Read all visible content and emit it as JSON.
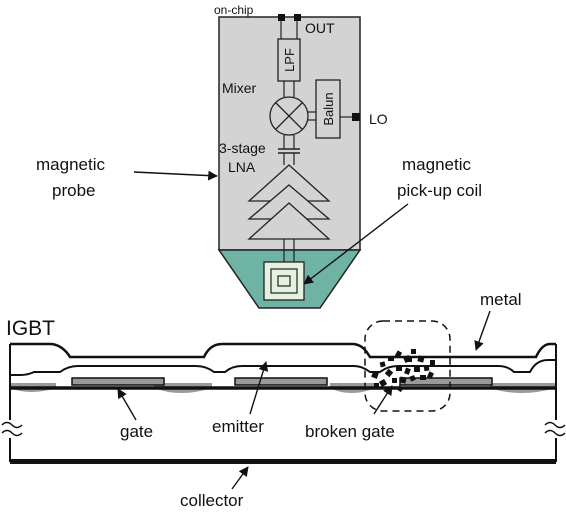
{
  "probe": {
    "on_chip": "on-chip",
    "out": "OUT",
    "lpf": "LPF",
    "mixer": "Mixer",
    "balun": "Balun",
    "lo": "LO",
    "lna_line1": "3-stage",
    "lna_line2": "LNA"
  },
  "callouts": {
    "magnetic_probe_line1": "magnetic",
    "magnetic_probe_line2": "probe",
    "pickup_coil_line1": "magnetic",
    "pickup_coil_line2": "pick-up coil"
  },
  "device": {
    "title": "IGBT",
    "metal": "metal",
    "gate": "gate",
    "emitter": "emitter",
    "broken_gate": "broken gate",
    "collector": "collector"
  },
  "colors": {
    "probe_body": "#d3d3d3",
    "probe_tip": "#6fb3a5",
    "coil_fill": "#e6f2e0",
    "gate_fill": "#9a9a9a",
    "ink": "#111111"
  }
}
